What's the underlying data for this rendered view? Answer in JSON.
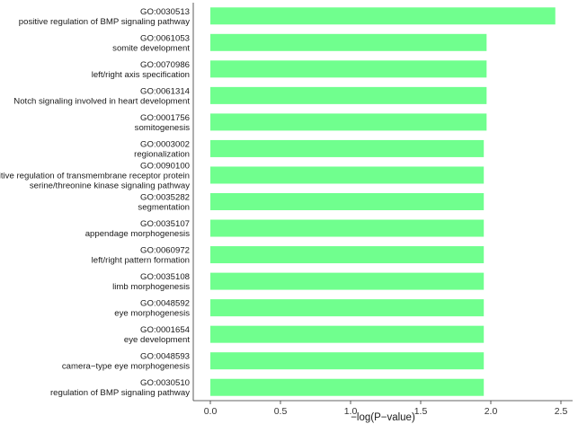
{
  "chart_data": {
    "type": "bar",
    "orientation": "horizontal",
    "xlabel": "−log(P−value)",
    "ylabel": "",
    "title": "",
    "xlim": [
      -0.12,
      2.55
    ],
    "xticks": [
      "0.0",
      "0.5",
      "1.0",
      "1.5",
      "2.0",
      "2.5"
    ],
    "bar_color": "#70FF8E",
    "grid": false,
    "categories": [
      {
        "id": "GO:0030513",
        "name": "positive regulation of BMP signaling pathway",
        "value": 2.46
      },
      {
        "id": "GO:0061053",
        "name": "somite development",
        "value": 1.97
      },
      {
        "id": "GO:0070986",
        "name": "left/right axis specification",
        "value": 1.97
      },
      {
        "id": "GO:0061314",
        "name": "Notch signaling involved in heart development",
        "value": 1.97
      },
      {
        "id": "GO:0001756",
        "name": "somitogenesis",
        "value": 1.97
      },
      {
        "id": "GO:0003002",
        "name": "regionalization",
        "value": 1.95
      },
      {
        "id": "GO:0090100",
        "name": "positive regulation of transmembrane receptor protein serine/threonine kinase signaling pathway",
        "name_lines": [
          "positive regulation of transmembrane receptor protein",
          "serine/threonine kinase signaling pathway"
        ],
        "value": 1.95
      },
      {
        "id": "GO:0035282",
        "name": "segmentation",
        "value": 1.95
      },
      {
        "id": "GO:0035107",
        "name": "appendage morphogenesis",
        "value": 1.95
      },
      {
        "id": "GO:0060972",
        "name": "left/right pattern formation",
        "value": 1.95
      },
      {
        "id": "GO:0035108",
        "name": "limb morphogenesis",
        "value": 1.95
      },
      {
        "id": "GO:0048592",
        "name": "eye morphogenesis",
        "value": 1.95
      },
      {
        "id": "GO:0001654",
        "name": "eye development",
        "value": 1.95
      },
      {
        "id": "GO:0048593",
        "name": "camera−type eye morphogenesis",
        "value": 1.95
      },
      {
        "id": "GO:0030510",
        "name": "regulation of BMP signaling pathway",
        "value": 1.95
      }
    ]
  }
}
